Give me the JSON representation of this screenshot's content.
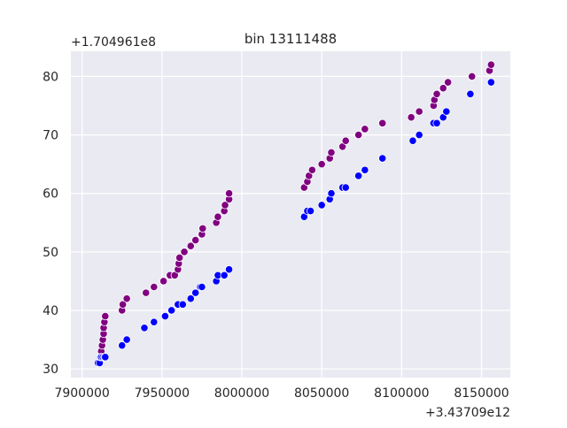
{
  "chart_data": {
    "type": "scatter",
    "title": "bin 13111488",
    "xlabel": "",
    "ylabel": "",
    "x_offset_label": "+3.43709e12",
    "y_offset_label": "+1.704961e8",
    "xlim": [
      7893000,
      8168000
    ],
    "ylim": [
      28.5,
      84.3
    ],
    "x_ticks": [
      7900000,
      7950000,
      8000000,
      8050000,
      8100000,
      8150000
    ],
    "x_tick_labels": [
      "7900000",
      "7950000",
      "8000000",
      "8050000",
      "8100000",
      "8150000"
    ],
    "y_ticks": [
      30,
      40,
      50,
      60,
      70,
      80
    ],
    "y_tick_labels": [
      "30",
      "40",
      "50",
      "60",
      "70",
      "80"
    ],
    "grid": true,
    "legend": "none",
    "background": "#eaeaf2",
    "grid_color": "#ffffff",
    "series": [
      {
        "color": "#800080",
        "points": [
          [
            7911000,
            31
          ],
          [
            7911500,
            32
          ],
          [
            7912000,
            33
          ],
          [
            7912500,
            34
          ],
          [
            7913000,
            35
          ],
          [
            7913500,
            36
          ],
          [
            7913500,
            37
          ],
          [
            7914000,
            38
          ],
          [
            7914500,
            39
          ],
          [
            7925000,
            40
          ],
          [
            7925500,
            41
          ],
          [
            7928000,
            42
          ],
          [
            7940000,
            43
          ],
          [
            7945000,
            44
          ],
          [
            7951000,
            45
          ],
          [
            7955000,
            46
          ],
          [
            7958000,
            46
          ],
          [
            7960000,
            47
          ],
          [
            7960500,
            48
          ],
          [
            7961000,
            49
          ],
          [
            7964000,
            50
          ],
          [
            7968000,
            51
          ],
          [
            7971000,
            52
          ],
          [
            7975000,
            53
          ],
          [
            7975500,
            54
          ],
          [
            7984000,
            55
          ],
          [
            7985000,
            56
          ],
          [
            7989000,
            57
          ],
          [
            7989500,
            58
          ],
          [
            7992000,
            59
          ],
          [
            7992000,
            60
          ],
          [
            8039000,
            61
          ],
          [
            8041000,
            62
          ],
          [
            8042000,
            63
          ],
          [
            8044000,
            64
          ],
          [
            8050000,
            65
          ],
          [
            8055000,
            66
          ],
          [
            8056000,
            67
          ],
          [
            8063000,
            68
          ],
          [
            8065000,
            69
          ],
          [
            8073000,
            70
          ],
          [
            8077000,
            71
          ],
          [
            8088000,
            72
          ],
          [
            8106000,
            73
          ],
          [
            8111000,
            74
          ],
          [
            8120000,
            75
          ],
          [
            8120500,
            76
          ],
          [
            8122000,
            77
          ],
          [
            8126000,
            78
          ],
          [
            8129000,
            79
          ],
          [
            8144000,
            80
          ],
          [
            8155000,
            81
          ],
          [
            8156000,
            82
          ]
        ]
      },
      {
        "color": "#0000ff",
        "points": [
          [
            7910000,
            31
          ],
          [
            7911000,
            31
          ],
          [
            7911500,
            32
          ],
          [
            7912000,
            32
          ],
          [
            7913000,
            32
          ],
          [
            7914000,
            32
          ],
          [
            7914500,
            32
          ],
          [
            7925000,
            34
          ],
          [
            7928000,
            35
          ],
          [
            7939000,
            37
          ],
          [
            7945000,
            38
          ],
          [
            7952000,
            39
          ],
          [
            7956000,
            40
          ],
          [
            7960000,
            41
          ],
          [
            7963000,
            41
          ],
          [
            7968000,
            42
          ],
          [
            7971000,
            43
          ],
          [
            7974000,
            44
          ],
          [
            7975000,
            44
          ],
          [
            7984000,
            45
          ],
          [
            7985000,
            46
          ],
          [
            7989000,
            46
          ],
          [
            7992000,
            47
          ],
          [
            8039000,
            56
          ],
          [
            8041000,
            57
          ],
          [
            8043000,
            57
          ],
          [
            8050000,
            58
          ],
          [
            8055000,
            59
          ],
          [
            8056000,
            60
          ],
          [
            8063000,
            61
          ],
          [
            8065000,
            61
          ],
          [
            8073000,
            63
          ],
          [
            8077000,
            64
          ],
          [
            8088000,
            66
          ],
          [
            8107000,
            69
          ],
          [
            8111000,
            70
          ],
          [
            8120000,
            72
          ],
          [
            8122000,
            72
          ],
          [
            8126000,
            73
          ],
          [
            8128000,
            74
          ],
          [
            8143000,
            77
          ],
          [
            8156000,
            79
          ]
        ]
      }
    ]
  }
}
